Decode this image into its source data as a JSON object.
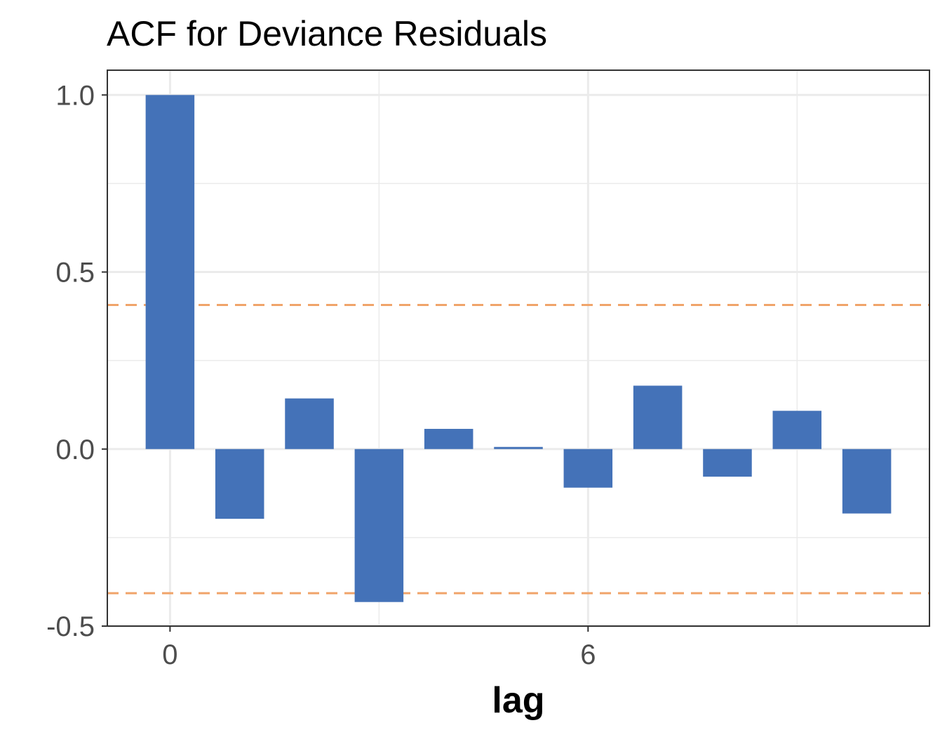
{
  "chart_data": {
    "type": "bar",
    "title": "ACF for Deviance Residuals",
    "xlabel": "lag",
    "ylabel": "",
    "x": [
      0,
      1,
      2,
      3,
      4,
      5,
      6,
      7,
      8,
      9,
      10
    ],
    "values": [
      1.0,
      -0.197,
      0.143,
      -0.432,
      0.057,
      0.006,
      -0.109,
      0.179,
      -0.078,
      0.108,
      -0.182
    ],
    "xlim": [
      -0.9,
      10.9
    ],
    "ylim": [
      -0.5,
      1.07
    ],
    "x_ticks": [
      0,
      6
    ],
    "x_tick_labels": [
      "0",
      "6"
    ],
    "y_ticks": [
      -0.5,
      0.0,
      0.5,
      1.0
    ],
    "y_tick_labels": [
      "-0.5",
      "0.0",
      "0.5",
      "1.0"
    ],
    "confidence_bounds": [
      0.407,
      -0.407
    ],
    "grid": true,
    "colors": {
      "bar": "#4472b8",
      "bounds": "#f0a46a",
      "grid": "#ebebeb",
      "frame": "#333333"
    }
  }
}
